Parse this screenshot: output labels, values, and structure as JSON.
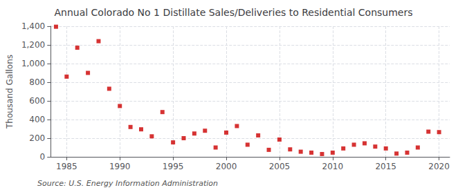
{
  "chart_data": {
    "type": "scatter",
    "title": "Annual Colorado No 1 Distillate Sales/Deliveries to Residential Consumers",
    "ylabel": "Thousand Gallons",
    "annotations": [
      "Source: U.S. Energy Information Administration"
    ],
    "x": [
      1984,
      1985,
      1986,
      1987,
      1988,
      1989,
      1990,
      1991,
      1992,
      1993,
      1994,
      1995,
      1996,
      1997,
      1998,
      1999,
      2000,
      2001,
      2002,
      2003,
      2004,
      2005,
      2006,
      2007,
      2008,
      2009,
      2010,
      2011,
      2012,
      2013,
      2014,
      2015,
      2016,
      2017,
      2018,
      2019,
      2020
    ],
    "values": [
      1395,
      860,
      1170,
      900,
      1240,
      730,
      545,
      320,
      295,
      220,
      480,
      155,
      200,
      250,
      280,
      100,
      260,
      330,
      130,
      230,
      75,
      185,
      80,
      55,
      45,
      30,
      45,
      90,
      130,
      145,
      110,
      90,
      35,
      45,
      100,
      270,
      265
    ],
    "color": "#cc0000",
    "marker": "square",
    "xlim": [
      1983.5,
      2021
    ],
    "xticks": [
      1985,
      1990,
      1995,
      2000,
      2005,
      2010,
      2015,
      2020
    ],
    "ylim": [
      0,
      1400
    ],
    "yticks": [
      0,
      200,
      400,
      600,
      800,
      {
        "value": 1000,
        "label": "1,000"
      },
      {
        "value": 1200,
        "label": "1,200"
      },
      {
        "value": 1400,
        "label": "1,400"
      }
    ],
    "grid": true
  }
}
